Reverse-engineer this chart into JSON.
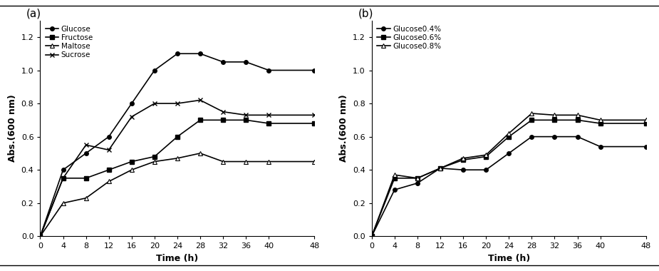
{
  "time": [
    0,
    4,
    8,
    12,
    16,
    20,
    24,
    28,
    32,
    36,
    40,
    48
  ],
  "panel_a": {
    "title": "(a)",
    "glucose": [
      0,
      0.4,
      0.5,
      0.6,
      0.8,
      1.0,
      1.1,
      1.1,
      1.05,
      1.05,
      1.0,
      1.0
    ],
    "fructose": [
      0,
      0.35,
      0.35,
      0.4,
      0.45,
      0.48,
      0.6,
      0.7,
      0.7,
      0.7,
      0.68,
      0.68
    ],
    "maltose": [
      0,
      0.2,
      0.23,
      0.33,
      0.4,
      0.45,
      0.47,
      0.5,
      0.45,
      0.45,
      0.45,
      0.45
    ],
    "sucrose": [
      0,
      0.35,
      0.55,
      0.52,
      0.72,
      0.8,
      0.8,
      0.82,
      0.75,
      0.73,
      0.73,
      0.73
    ],
    "legend": [
      "Glucose",
      "Fructose",
      "Maltose",
      "Sucrose"
    ]
  },
  "panel_b": {
    "title": "(b)",
    "g04": [
      0,
      0.28,
      0.32,
      0.41,
      0.4,
      0.4,
      0.5,
      0.6,
      0.6,
      0.6,
      0.54,
      0.54
    ],
    "g06": [
      0,
      0.35,
      0.35,
      0.41,
      0.46,
      0.48,
      0.6,
      0.7,
      0.7,
      0.7,
      0.68,
      0.68
    ],
    "g08": [
      0,
      0.37,
      0.35,
      0.41,
      0.47,
      0.49,
      0.62,
      0.74,
      0.73,
      0.73,
      0.7,
      0.7
    ],
    "legend": [
      "Glucose0.4%",
      "Glucose0.6%",
      "Glucose0.8%"
    ]
  },
  "ylabel": "Abs.(600 nm)",
  "xlabel": "Time (h)",
  "ylim": [
    0,
    1.3
  ],
  "xticks": [
    0,
    4,
    8,
    12,
    16,
    20,
    24,
    28,
    32,
    36,
    40,
    48
  ],
  "yticks": [
    0,
    0.2,
    0.4,
    0.6,
    0.8,
    1.0,
    1.2
  ],
  "bg_color": "#ffffff"
}
